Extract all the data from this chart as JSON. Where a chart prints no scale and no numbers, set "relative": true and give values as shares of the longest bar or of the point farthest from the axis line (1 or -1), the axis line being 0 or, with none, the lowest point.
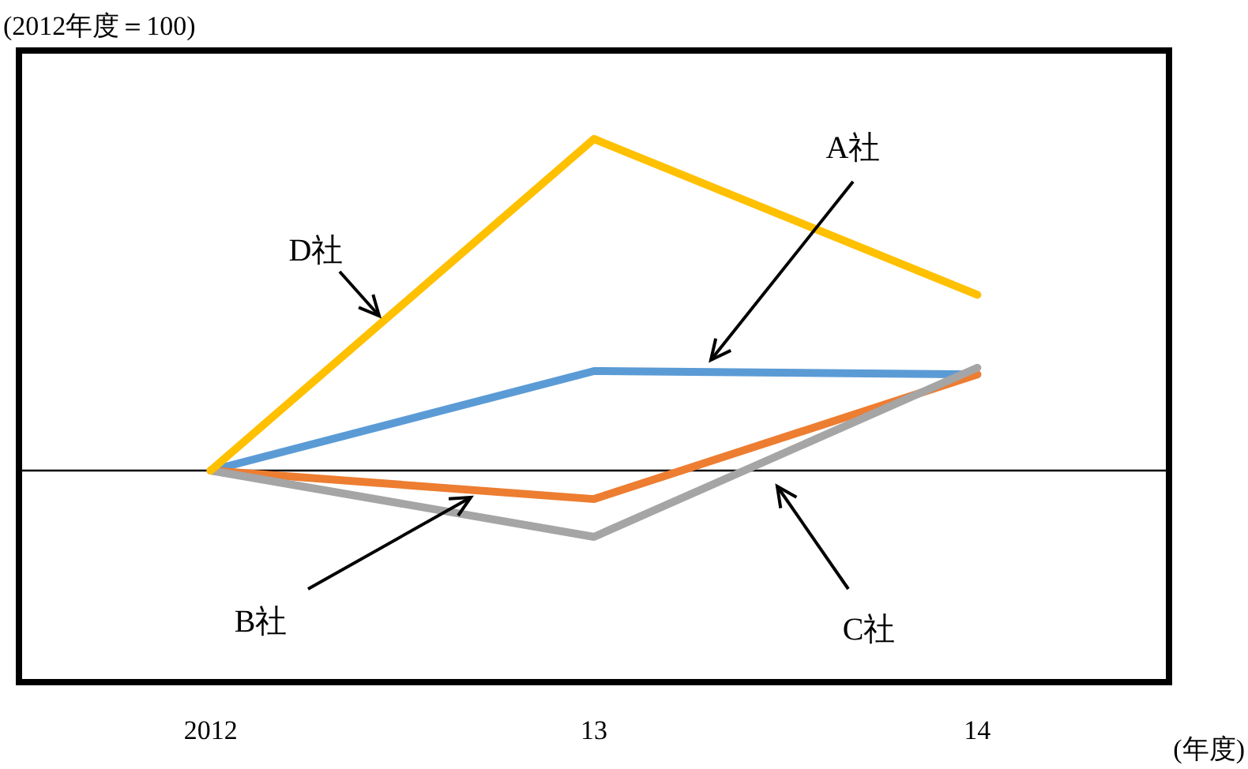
{
  "chart_data": {
    "type": "line",
    "relative": true,
    "ylabel": "(2012年度＝100)",
    "xlabel": "(年度)",
    "categories": [
      "2012",
      "13",
      "14"
    ],
    "series": [
      {
        "name": "A社",
        "color": "#5b9bd5",
        "values": [
          0,
          0.3,
          0.29
        ]
      },
      {
        "name": "B社",
        "color": "#ed7d31",
        "values": [
          0,
          -0.086,
          0.29
        ]
      },
      {
        "name": "C社",
        "color": "#a5a5a5",
        "values": [
          0,
          -0.2,
          0.31
        ]
      },
      {
        "name": "D社",
        "color": "#ffc000",
        "values": [
          0,
          1,
          0.53
        ]
      }
    ]
  }
}
